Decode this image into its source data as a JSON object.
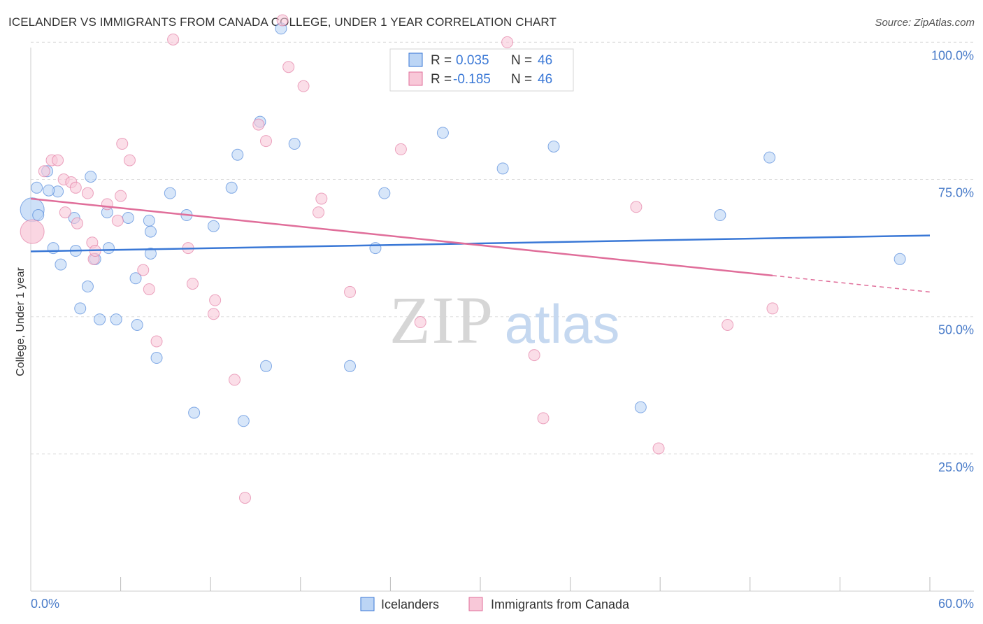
{
  "header": {
    "title": "ICELANDER VS IMMIGRANTS FROM CANADA COLLEGE, UNDER 1 YEAR CORRELATION CHART",
    "source": "Source: ZipAtlas.com"
  },
  "watermark": {
    "zip": "ZIP",
    "atlas": "atlas"
  },
  "colors": {
    "blue": "#3a78d6",
    "blue_fill": "#bcd5f5",
    "pink": "#e06e9a",
    "pink_fill": "#f8c8d8",
    "grid": "#dddddd",
    "tick_text": "#4a7cc9"
  },
  "legend": {
    "rows": [
      {
        "r_label": "R =",
        "r_value": "0.035",
        "n_label": "N =",
        "n_value": "46"
      },
      {
        "r_label": "R =",
        "r_value": "-0.185",
        "n_label": "N =",
        "n_value": "46"
      }
    ]
  },
  "bottom_legend": [
    "Icelanders",
    "Immigrants from Canada"
  ],
  "chart_data": {
    "type": "scatter",
    "title": "ICELANDER VS IMMIGRANTS FROM CANADA COLLEGE, UNDER 1 YEAR CORRELATION CHART",
    "xlabel": "",
    "ylabel": "College, Under 1 year",
    "xlim": [
      0,
      60
    ],
    "ylim": [
      0,
      100
    ],
    "x_tick_labels": [
      "0.0%",
      "60.0%"
    ],
    "y_ticks": [
      25,
      50,
      75,
      100
    ],
    "y_tick_labels": [
      "25.0%",
      "50.0%",
      "75.0%",
      "100.0%"
    ],
    "grid": true,
    "legend_position": "top-center",
    "series": [
      {
        "name": "Icelanders",
        "color": "#3a78d6",
        "r": 0.035,
        "n": 46,
        "trend": {
          "x": [
            0,
            60
          ],
          "y": [
            61.9,
            64.8
          ]
        },
        "points": [
          {
            "x": 0.1,
            "y": 69.5,
            "big": true
          },
          {
            "x": 0.5,
            "y": 68.5
          },
          {
            "x": 0.4,
            "y": 73.5
          },
          {
            "x": 1.1,
            "y": 76.5
          },
          {
            "x": 1.8,
            "y": 72.8
          },
          {
            "x": 1.5,
            "y": 62.5
          },
          {
            "x": 1.2,
            "y": 73.0
          },
          {
            "x": 2.0,
            "y": 59.5
          },
          {
            "x": 3.0,
            "y": 62.0
          },
          {
            "x": 2.9,
            "y": 68.0
          },
          {
            "x": 4.0,
            "y": 75.5
          },
          {
            "x": 4.3,
            "y": 60.5
          },
          {
            "x": 3.3,
            "y": 51.5
          },
          {
            "x": 3.8,
            "y": 55.5
          },
          {
            "x": 5.2,
            "y": 62.5
          },
          {
            "x": 5.1,
            "y": 69.0
          },
          {
            "x": 4.6,
            "y": 49.5
          },
          {
            "x": 5.7,
            "y": 49.5
          },
          {
            "x": 6.5,
            "y": 68.0
          },
          {
            "x": 7.0,
            "y": 57.0
          },
          {
            "x": 7.1,
            "y": 48.5
          },
          {
            "x": 7.9,
            "y": 67.5
          },
          {
            "x": 8.0,
            "y": 65.5
          },
          {
            "x": 8.4,
            "y": 42.5
          },
          {
            "x": 9.3,
            "y": 72.5
          },
          {
            "x": 10.4,
            "y": 68.5
          },
          {
            "x": 10.9,
            "y": 32.5
          },
          {
            "x": 12.2,
            "y": 66.5
          },
          {
            "x": 13.4,
            "y": 73.5
          },
          {
            "x": 13.8,
            "y": 79.5
          },
          {
            "x": 14.2,
            "y": 31.0
          },
          {
            "x": 15.3,
            "y": 85.5
          },
          {
            "x": 15.7,
            "y": 41.0
          },
          {
            "x": 16.7,
            "y": 102.5
          },
          {
            "x": 17.6,
            "y": 81.5
          },
          {
            "x": 21.3,
            "y": 41.0
          },
          {
            "x": 23.0,
            "y": 62.5
          },
          {
            "x": 23.6,
            "y": 72.5
          },
          {
            "x": 27.5,
            "y": 83.5
          },
          {
            "x": 31.5,
            "y": 77.0
          },
          {
            "x": 34.9,
            "y": 81.0
          },
          {
            "x": 40.7,
            "y": 33.5
          },
          {
            "x": 46.0,
            "y": 68.5
          },
          {
            "x": 49.3,
            "y": 79.0
          },
          {
            "x": 58.0,
            "y": 60.5
          },
          {
            "x": 8.0,
            "y": 61.5
          }
        ]
      },
      {
        "name": "Immigrants from Canada",
        "color": "#e06e9a",
        "r": -0.185,
        "n": 46,
        "trend": {
          "x": [
            0,
            49.5
          ],
          "y": [
            71.5,
            57.5
          ]
        },
        "trend_dashed": {
          "x": [
            49.5,
            60
          ],
          "y": [
            57.5,
            54.5
          ]
        },
        "points": [
          {
            "x": 0.1,
            "y": 65.5,
            "big": true
          },
          {
            "x": 0.9,
            "y": 76.5
          },
          {
            "x": 1.4,
            "y": 78.5
          },
          {
            "x": 1.8,
            "y": 78.5
          },
          {
            "x": 2.2,
            "y": 75.0
          },
          {
            "x": 2.7,
            "y": 74.5
          },
          {
            "x": 3.0,
            "y": 73.5
          },
          {
            "x": 3.8,
            "y": 72.5
          },
          {
            "x": 2.3,
            "y": 69.0
          },
          {
            "x": 3.1,
            "y": 67.0
          },
          {
            "x": 4.1,
            "y": 63.5
          },
          {
            "x": 4.2,
            "y": 60.5
          },
          {
            "x": 6.1,
            "y": 81.5
          },
          {
            "x": 6.6,
            "y": 78.5
          },
          {
            "x": 6.0,
            "y": 72.0
          },
          {
            "x": 5.8,
            "y": 67.5
          },
          {
            "x": 4.3,
            "y": 62.0
          },
          {
            "x": 5.1,
            "y": 70.5
          },
          {
            "x": 7.5,
            "y": 58.5
          },
          {
            "x": 7.9,
            "y": 55.0
          },
          {
            "x": 8.4,
            "y": 45.5
          },
          {
            "x": 9.5,
            "y": 100.5
          },
          {
            "x": 10.5,
            "y": 62.5
          },
          {
            "x": 10.8,
            "y": 56.0
          },
          {
            "x": 12.2,
            "y": 50.5
          },
          {
            "x": 12.3,
            "y": 53.0
          },
          {
            "x": 13.6,
            "y": 38.5
          },
          {
            "x": 14.3,
            "y": 17.0
          },
          {
            "x": 15.2,
            "y": 85.0
          },
          {
            "x": 15.7,
            "y": 82.0
          },
          {
            "x": 16.8,
            "y": 104.0
          },
          {
            "x": 17.2,
            "y": 95.5
          },
          {
            "x": 18.2,
            "y": 92.0
          },
          {
            "x": 19.2,
            "y": 69.0
          },
          {
            "x": 19.4,
            "y": 71.5
          },
          {
            "x": 24.7,
            "y": 80.5
          },
          {
            "x": 26.0,
            "y": 49.0
          },
          {
            "x": 31.8,
            "y": 100.0
          },
          {
            "x": 32.5,
            "y": 96.0
          },
          {
            "x": 33.6,
            "y": 43.0
          },
          {
            "x": 34.2,
            "y": 31.5
          },
          {
            "x": 40.4,
            "y": 70.0
          },
          {
            "x": 41.9,
            "y": 26.0
          },
          {
            "x": 46.5,
            "y": 48.5
          },
          {
            "x": 49.5,
            "y": 51.5
          },
          {
            "x": 21.3,
            "y": 54.5
          }
        ]
      }
    ]
  }
}
